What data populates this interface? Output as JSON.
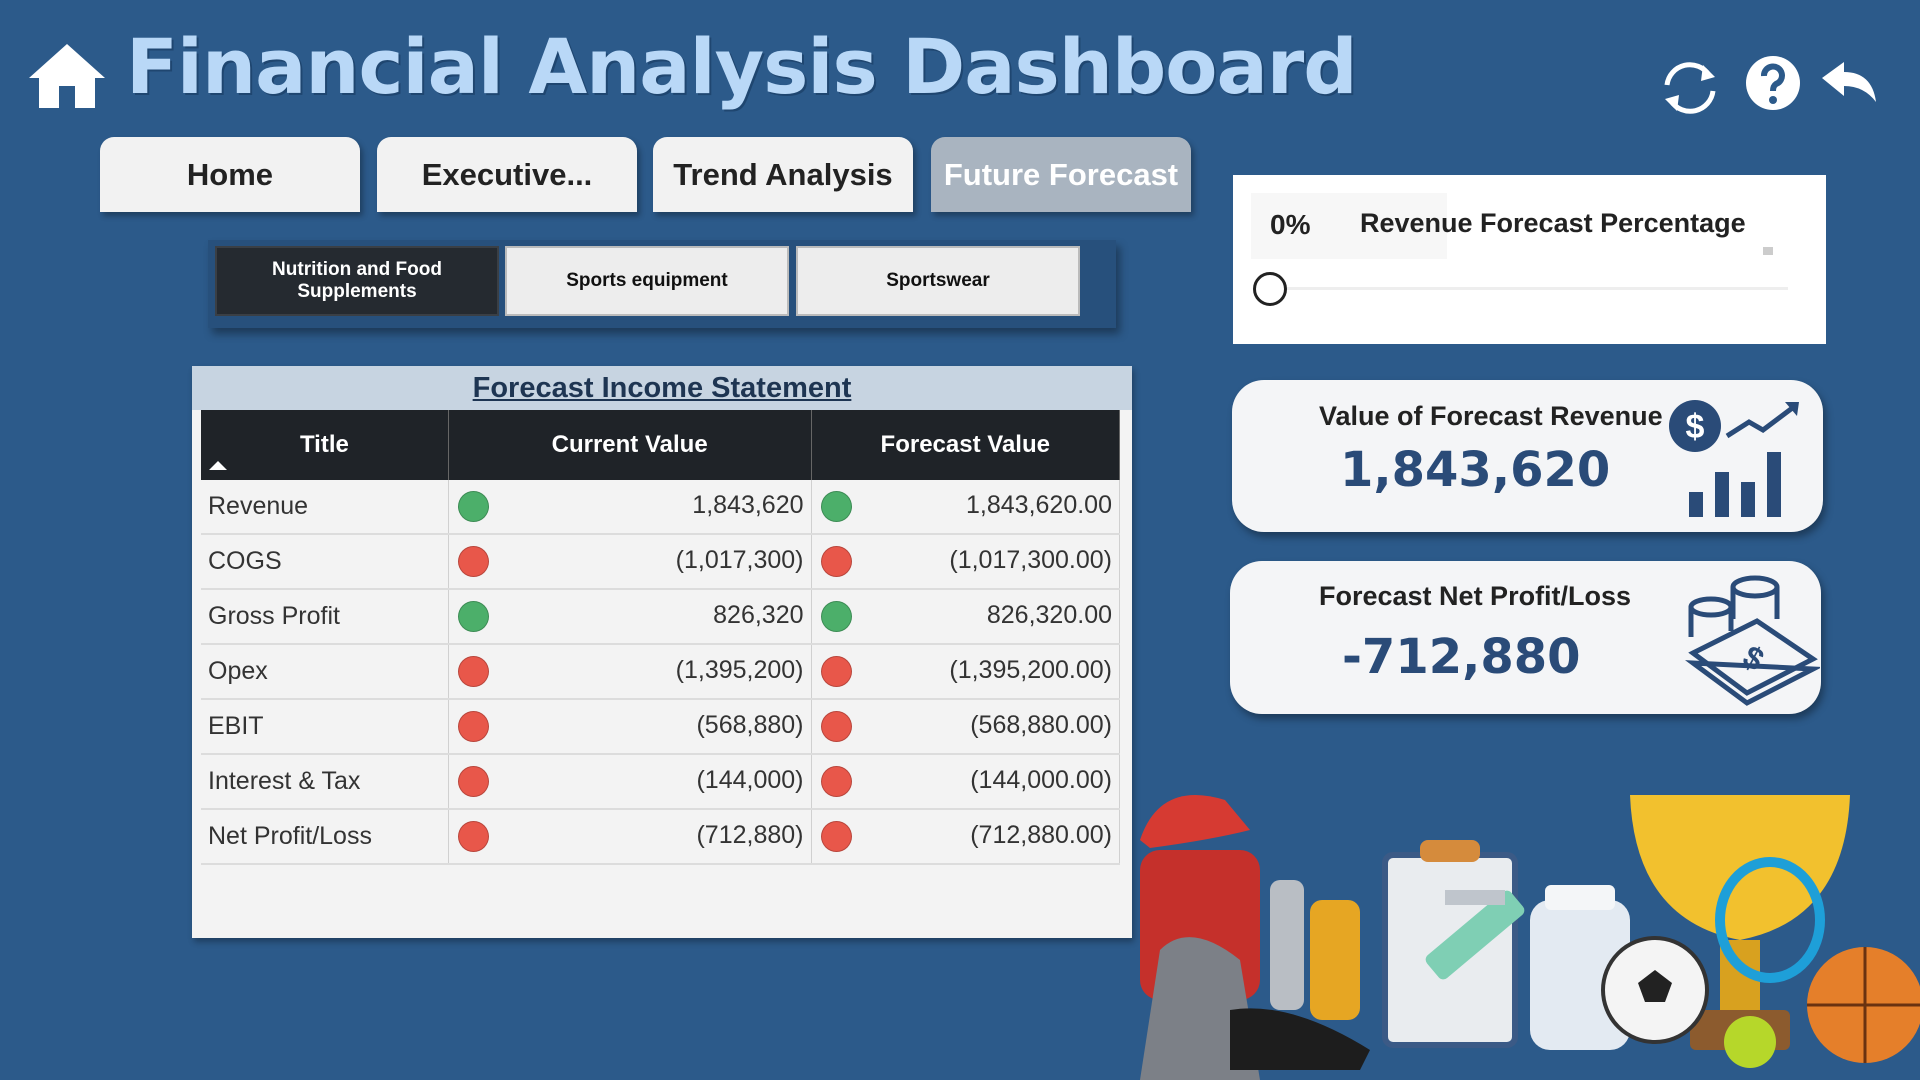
{
  "header": {
    "title": "Financial Analysis Dashboard"
  },
  "nav_tabs": [
    {
      "label": "Home",
      "active": false
    },
    {
      "label": "Executive...",
      "active": false
    },
    {
      "label": "Trend Analysis",
      "active": false
    },
    {
      "label": "Future Forecast",
      "active": true
    }
  ],
  "category_buttons": [
    {
      "label": "Nutrition and Food Supplements",
      "selected": true
    },
    {
      "label": "Sports equipment",
      "selected": false
    },
    {
      "label": "Sportswear",
      "selected": false
    }
  ],
  "table": {
    "title": "Forecast Income Statement",
    "columns": [
      "Title",
      "Current Value",
      "Forecast Value"
    ],
    "rows": [
      {
        "title": "Revenue",
        "current": "1,843,620",
        "forecast": "1,843,620.00",
        "indicator": "#4caf6a"
      },
      {
        "title": "COGS",
        "current": "(1,017,300)",
        "forecast": "(1,017,300.00)",
        "indicator": "#e8574a"
      },
      {
        "title": "Gross Profit",
        "current": "826,320",
        "forecast": "826,320.00",
        "indicator": "#4caf6a"
      },
      {
        "title": "Opex",
        "current": "(1,395,200)",
        "forecast": "(1,395,200.00)",
        "indicator": "#e8574a"
      },
      {
        "title": "EBIT",
        "current": "(568,880)",
        "forecast": "(568,880.00)",
        "indicator": "#e8574a"
      },
      {
        "title": "Interest & Tax",
        "current": "(144,000)",
        "forecast": "(144,000.00)",
        "indicator": "#e8574a"
      },
      {
        "title": "Net Profit/Loss",
        "current": "(712,880)",
        "forecast": "(712,880.00)",
        "indicator": "#e8574a"
      }
    ]
  },
  "slider": {
    "value_label": "0%",
    "label": "Revenue Forecast Percentage"
  },
  "cards": [
    {
      "title": "Value of Forecast Revenue",
      "value": "1,843,620"
    },
    {
      "title": "Forecast Net Profit/Loss",
      "value": "-712,880"
    }
  ]
}
